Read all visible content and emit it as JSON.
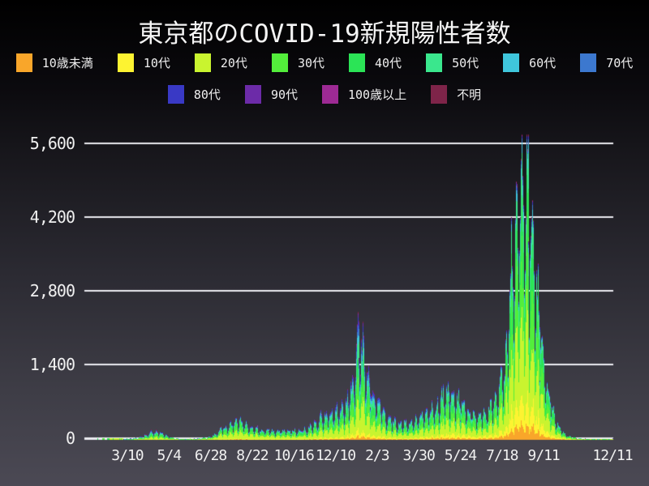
{
  "title": "東京都のCOVID-19新規陽性者数",
  "chart_data": {
    "type": "bar",
    "stacked": true,
    "title": "東京都のCOVID-19新規陽性者数",
    "grid": true,
    "legend_position": "top",
    "x_range": [
      "2020-01-25",
      "2021-12-11"
    ],
    "ylim": [
      0,
      6015
    ],
    "yticks": [
      {
        "value": 0,
        "label": "0"
      },
      {
        "value": 1400,
        "label": "1,400"
      },
      {
        "value": 2800,
        "label": "2,800"
      },
      {
        "value": 4200,
        "label": "4,200"
      },
      {
        "value": 5600,
        "label": "5,600"
      }
    ],
    "xticks": [
      {
        "label": "3/10",
        "date": "2020-03-10"
      },
      {
        "label": "5/4",
        "date": "2020-05-04"
      },
      {
        "label": "6/28",
        "date": "2020-06-28"
      },
      {
        "label": "8/22",
        "date": "2020-08-22"
      },
      {
        "label": "10/16",
        "date": "2020-10-16"
      },
      {
        "label": "12/10",
        "date": "2020-12-10"
      },
      {
        "label": "2/3",
        "date": "2021-02-03"
      },
      {
        "label": "3/30",
        "date": "2021-03-30"
      },
      {
        "label": "5/24",
        "date": "2021-05-24"
      },
      {
        "label": "7/18",
        "date": "2021-07-18"
      },
      {
        "label": "9/11",
        "date": "2021-09-11"
      },
      {
        "label": "12/11",
        "date": "2021-12-11"
      }
    ],
    "series": [
      {
        "label": "10歳未満",
        "color": "#F9A62A"
      },
      {
        "label": "10代",
        "color": "#FDF331"
      },
      {
        "label": "20代",
        "color": "#C9F42F"
      },
      {
        "label": "30代",
        "color": "#53EE3B"
      },
      {
        "label": "40代",
        "color": "#2BE456"
      },
      {
        "label": "50代",
        "color": "#3AE78D"
      },
      {
        "label": "60代",
        "color": "#3FC6DC"
      },
      {
        "label": "70代",
        "color": "#3C78CF"
      },
      {
        "label": "80代",
        "color": "#3939C5"
      },
      {
        "label": "90代",
        "color": "#6C2BA8"
      },
      {
        "label": "100歳以上",
        "color": "#9D2A94"
      },
      {
        "label": "不明",
        "color": "#7E2449"
      }
    ],
    "legend_rows": [
      8,
      4
    ],
    "daily_envelope": [
      [
        "2020-01-25",
        0.4
      ],
      [
        "2020-02-20",
        1.5
      ],
      [
        "2020-03-05",
        8
      ],
      [
        "2020-03-15",
        22
      ],
      [
        "2020-03-28",
        55
      ],
      [
        "2020-04-10",
        140
      ],
      [
        "2020-04-17",
        165
      ],
      [
        "2020-04-25",
        120
      ],
      [
        "2020-05-05",
        60
      ],
      [
        "2020-05-20",
        15
      ],
      [
        "2020-06-01",
        14
      ],
      [
        "2020-06-15",
        30
      ],
      [
        "2020-06-28",
        55
      ],
      [
        "2020-07-10",
        180
      ],
      [
        "2020-07-24",
        270
      ],
      [
        "2020-08-01",
        370
      ],
      [
        "2020-08-08",
        330
      ],
      [
        "2020-08-20",
        210
      ],
      [
        "2020-09-05",
        170
      ],
      [
        "2020-09-20",
        155
      ],
      [
        "2020-10-05",
        160
      ],
      [
        "2020-10-20",
        165
      ],
      [
        "2020-11-01",
        190
      ],
      [
        "2020-11-12",
        280
      ],
      [
        "2020-11-22",
        430
      ],
      [
        "2020-12-05",
        480
      ],
      [
        "2020-12-15",
        560
      ],
      [
        "2020-12-24",
        700
      ],
      [
        "2020-12-31",
        950
      ],
      [
        "2021-01-05",
        1400
      ],
      [
        "2021-01-08",
        1850
      ],
      [
        "2021-01-14",
        1650
      ],
      [
        "2021-01-22",
        1100
      ],
      [
        "2021-01-31",
        750
      ],
      [
        "2021-02-10",
        480
      ],
      [
        "2021-02-22",
        330
      ],
      [
        "2021-03-08",
        290
      ],
      [
        "2021-03-20",
        310
      ],
      [
        "2021-03-31",
        400
      ],
      [
        "2021-04-12",
        500
      ],
      [
        "2021-04-24",
        680
      ],
      [
        "2021-05-08",
        880
      ],
      [
        "2021-05-15",
        800
      ],
      [
        "2021-05-26",
        600
      ],
      [
        "2021-06-07",
        440
      ],
      [
        "2021-06-18",
        400
      ],
      [
        "2021-06-28",
        500
      ],
      [
        "2021-07-07",
        700
      ],
      [
        "2021-07-15",
        950
      ],
      [
        "2021-07-22",
        1450
      ],
      [
        "2021-07-29",
        2800
      ],
      [
        "2021-08-05",
        3700
      ],
      [
        "2021-08-13",
        4650
      ],
      [
        "2021-08-19",
        4400
      ],
      [
        "2021-08-26",
        3900
      ],
      [
        "2021-09-01",
        2800
      ],
      [
        "2021-09-08",
        1800
      ],
      [
        "2021-09-15",
        1000
      ],
      [
        "2021-09-22",
        550
      ],
      [
        "2021-09-29",
        280
      ],
      [
        "2021-10-06",
        130
      ],
      [
        "2021-10-13",
        70
      ],
      [
        "2021-10-20",
        40
      ],
      [
        "2021-10-27",
        25
      ],
      [
        "2021-11-05",
        18
      ],
      [
        "2021-11-15",
        14
      ],
      [
        "2021-11-25",
        15
      ],
      [
        "2021-12-05",
        16
      ],
      [
        "2021-12-11",
        17
      ]
    ],
    "wave_peaks": [
      {
        "date": "2020-04-17",
        "daily_max": 206
      },
      {
        "date": "2020-08-01",
        "daily_max": 472
      },
      {
        "date": "2021-01-07",
        "daily_max": 2520
      },
      {
        "date": "2021-05-08",
        "daily_max": 1121
      },
      {
        "date": "2021-08-13",
        "daily_max": 5773
      }
    ],
    "age_share_timeline": [
      {
        "date": "2020-02-01",
        "shares": [
          0.02,
          0.02,
          0.16,
          0.15,
          0.16,
          0.13,
          0.1,
          0.09,
          0.07,
          0.03,
          0.003,
          0.067
        ]
      },
      {
        "date": "2020-08-01",
        "shares": [
          0.02,
          0.04,
          0.36,
          0.22,
          0.13,
          0.09,
          0.05,
          0.035,
          0.025,
          0.012,
          0.001,
          0.007
        ]
      },
      {
        "date": "2021-01-15",
        "shares": [
          0.03,
          0.05,
          0.26,
          0.18,
          0.15,
          0.12,
          0.07,
          0.06,
          0.045,
          0.022,
          0.002,
          0.011
        ]
      },
      {
        "date": "2021-05-01",
        "shares": [
          0.04,
          0.07,
          0.28,
          0.2,
          0.16,
          0.12,
          0.06,
          0.035,
          0.02,
          0.009,
          0.001,
          0.005
        ]
      },
      {
        "date": "2021-08-10",
        "shares": [
          0.055,
          0.09,
          0.3,
          0.22,
          0.17,
          0.1,
          0.035,
          0.015,
          0.008,
          0.003,
          0.0005,
          0.004
        ]
      },
      {
        "date": "2021-12-11",
        "shares": [
          0.05,
          0.09,
          0.3,
          0.22,
          0.15,
          0.1,
          0.04,
          0.02,
          0.015,
          0.006,
          0.0005,
          0.009
        ]
      }
    ],
    "weekly_pattern": [
      0.9,
      0.55,
      0.8,
      1.08,
      1.2,
      1.27,
      1.2
    ],
    "noise_amplitude": 0.16,
    "max_daily_total": 5800,
    "grid_color": "#ececf2",
    "text_color": "#f0f0f0"
  }
}
